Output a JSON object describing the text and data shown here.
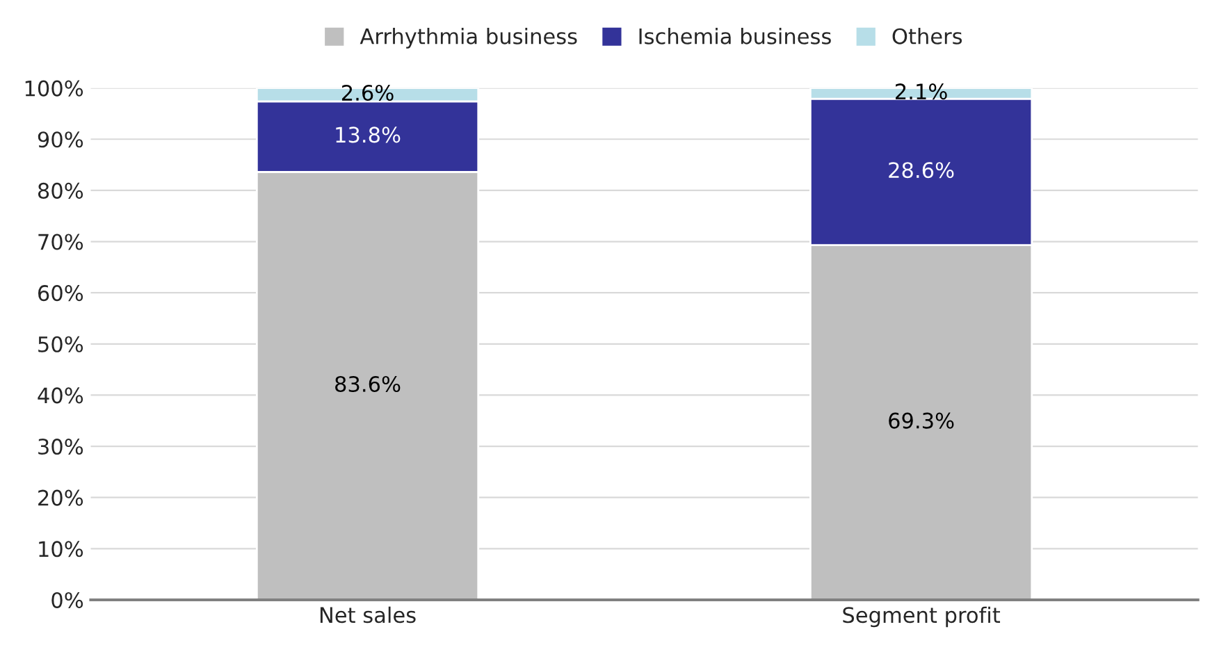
{
  "chart_data": {
    "type": "bar",
    "stacked": true,
    "categories": [
      "Net sales",
      "Segment profit"
    ],
    "series": [
      {
        "name": "Arrhythmia business",
        "color": "#bfbfbf",
        "values": [
          83.6,
          69.3
        ],
        "value_labels": [
          "83.6%",
          "69.3%"
        ]
      },
      {
        "name": "Ischemia business",
        "color": "#333399",
        "values": [
          13.8,
          28.6
        ],
        "value_labels": [
          "13.8%",
          "28.6%"
        ]
      },
      {
        "name": "Others",
        "color": "#b7dee8",
        "values": [
          2.6,
          2.1
        ],
        "value_labels": [
          "2.6%",
          "2.1%"
        ]
      }
    ],
    "ylim": [
      0,
      100
    ],
    "yticks": [
      {
        "value": 0,
        "label": "0%"
      },
      {
        "value": 10,
        "label": "10%"
      },
      {
        "value": 20,
        "label": "20%"
      },
      {
        "value": 30,
        "label": "30%"
      },
      {
        "value": 40,
        "label": "40%"
      },
      {
        "value": 50,
        "label": "50%"
      },
      {
        "value": 60,
        "label": "60%"
      },
      {
        "value": 70,
        "label": "70%"
      },
      {
        "value": 80,
        "label": "80%"
      },
      {
        "value": 90,
        "label": "90%"
      },
      {
        "value": 100,
        "label": "100%"
      }
    ],
    "grid": "y",
    "legend": "top"
  }
}
